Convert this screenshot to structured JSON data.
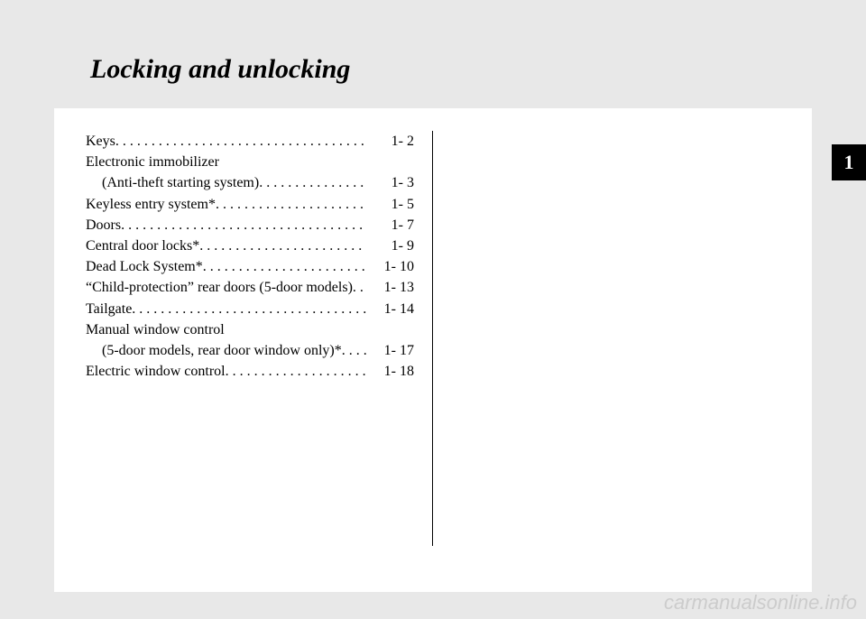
{
  "title": "Locking and unlocking",
  "chapter_number": "1",
  "watermark": "carmanualsonline.info",
  "toc": [
    {
      "label": "Keys",
      "dots": " . . . . . . . . . . . . . . . . . . . . . . . . . . . . . . . . . . . .",
      "page": "1-    2",
      "indent": false
    },
    {
      "label": "Electronic immobilizer",
      "dots": "",
      "page": "",
      "indent": false
    },
    {
      "label": "(Anti-theft starting system)",
      "dots": ". . . . . . . . . . . . . . . .",
      "page": "1-    3",
      "indent": true
    },
    {
      "label": "Keyless entry system*",
      "dots": " . . . . . . . . . . . . . . . . . . . . .",
      "page": "1-    5",
      "indent": false
    },
    {
      "label": "Doors",
      "dots": " . . . . . . . . . . . . . . . . . . . . . . . . . . . . . . . . . .",
      "page": "1-    7",
      "indent": false
    },
    {
      "label": "Central door locks*",
      "dots": "  . . . . . . . . . . . . . . . . . . . . . . .",
      "page": "1-    9",
      "indent": false
    },
    {
      "label": "Dead Lock System*",
      "dots": " . . . . . . . . . . . . . . . . . . . . . . .",
      "page": "1-  10",
      "indent": false
    },
    {
      "label": "“Child-protection” rear doors (5-door models)",
      "dots": " . . .",
      "page": "1-  13",
      "indent": false
    },
    {
      "label": "Tailgate",
      "dots": ". . . . . . . . . . . . . . . . . . . . . . . . . . . . . . . . .",
      "page": "1-  14",
      "indent": false
    },
    {
      "label": "Manual window control",
      "dots": "",
      "page": "",
      "indent": false
    },
    {
      "label": "(5-door models, rear door window only)*",
      "dots": "  . . . . .",
      "page": "1-  17",
      "indent": true
    },
    {
      "label": "Electric window control",
      "dots": ". . . . . . . . . . . . . . . . . . . .",
      "page": "1-  18",
      "indent": false
    }
  ]
}
